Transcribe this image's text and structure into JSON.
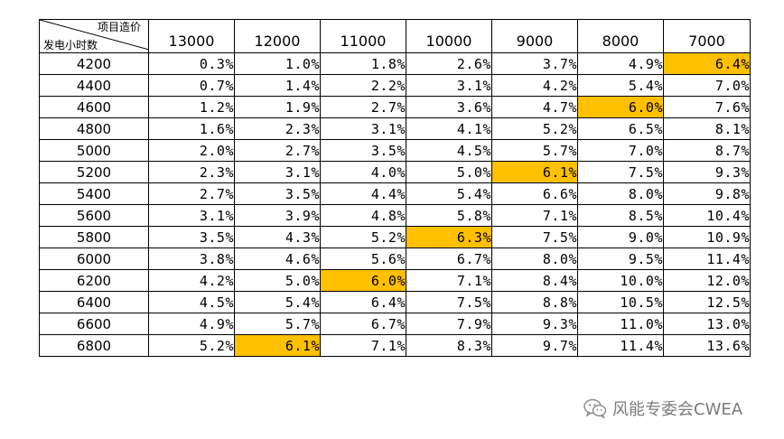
{
  "corner": {
    "column_axis_label": "项目造价",
    "row_axis_label": "发电小时数"
  },
  "columns": [
    "13000",
    "12000",
    "11000",
    "10000",
    "9000",
    "8000",
    "7000"
  ],
  "rows": [
    {
      "hours": "4200",
      "values": [
        "0.3%",
        "1.0%",
        "1.8%",
        "2.6%",
        "3.7%",
        "4.9%",
        "6.4%"
      ],
      "highlight": 6
    },
    {
      "hours": "4400",
      "values": [
        "0.7%",
        "1.4%",
        "2.2%",
        "3.1%",
        "4.2%",
        "5.4%",
        "7.0%"
      ],
      "highlight": -1
    },
    {
      "hours": "4600",
      "values": [
        "1.2%",
        "1.9%",
        "2.7%",
        "3.6%",
        "4.7%",
        "6.0%",
        "7.6%"
      ],
      "highlight": 5
    },
    {
      "hours": "4800",
      "values": [
        "1.6%",
        "2.3%",
        "3.1%",
        "4.1%",
        "5.2%",
        "6.5%",
        "8.1%"
      ],
      "highlight": -1
    },
    {
      "hours": "5000",
      "values": [
        "2.0%",
        "2.7%",
        "3.5%",
        "4.5%",
        "5.7%",
        "7.0%",
        "8.7%"
      ],
      "highlight": -1
    },
    {
      "hours": "5200",
      "values": [
        "2.3%",
        "3.1%",
        "4.0%",
        "5.0%",
        "6.1%",
        "7.5%",
        "9.3%"
      ],
      "highlight": 4
    },
    {
      "hours": "5400",
      "values": [
        "2.7%",
        "3.5%",
        "4.4%",
        "5.4%",
        "6.6%",
        "8.0%",
        "9.8%"
      ],
      "highlight": -1
    },
    {
      "hours": "5600",
      "values": [
        "3.1%",
        "3.9%",
        "4.8%",
        "5.8%",
        "7.1%",
        "8.5%",
        "10.4%"
      ],
      "highlight": -1
    },
    {
      "hours": "5800",
      "values": [
        "3.5%",
        "4.3%",
        "5.2%",
        "6.3%",
        "7.5%",
        "9.0%",
        "10.9%"
      ],
      "highlight": 3
    },
    {
      "hours": "6000",
      "values": [
        "3.8%",
        "4.6%",
        "5.6%",
        "6.7%",
        "8.0%",
        "9.5%",
        "11.4%"
      ],
      "highlight": -1
    },
    {
      "hours": "6200",
      "values": [
        "4.2%",
        "5.0%",
        "6.0%",
        "7.1%",
        "8.4%",
        "10.0%",
        "12.0%"
      ],
      "highlight": 2
    },
    {
      "hours": "6400",
      "values": [
        "4.5%",
        "5.4%",
        "6.4%",
        "7.5%",
        "8.8%",
        "10.5%",
        "12.5%"
      ],
      "highlight": -1
    },
    {
      "hours": "6600",
      "values": [
        "4.9%",
        "5.7%",
        "6.7%",
        "7.9%",
        "9.3%",
        "11.0%",
        "13.0%"
      ],
      "highlight": -1
    },
    {
      "hours": "6800",
      "values": [
        "5.2%",
        "6.1%",
        "7.1%",
        "8.3%",
        "9.7%",
        "11.4%",
        "13.6%"
      ],
      "highlight": 1
    }
  ],
  "highlight_color": "#ffc000",
  "watermark": {
    "icon": "wechat-icon",
    "text": "风能专委会CWEA"
  }
}
